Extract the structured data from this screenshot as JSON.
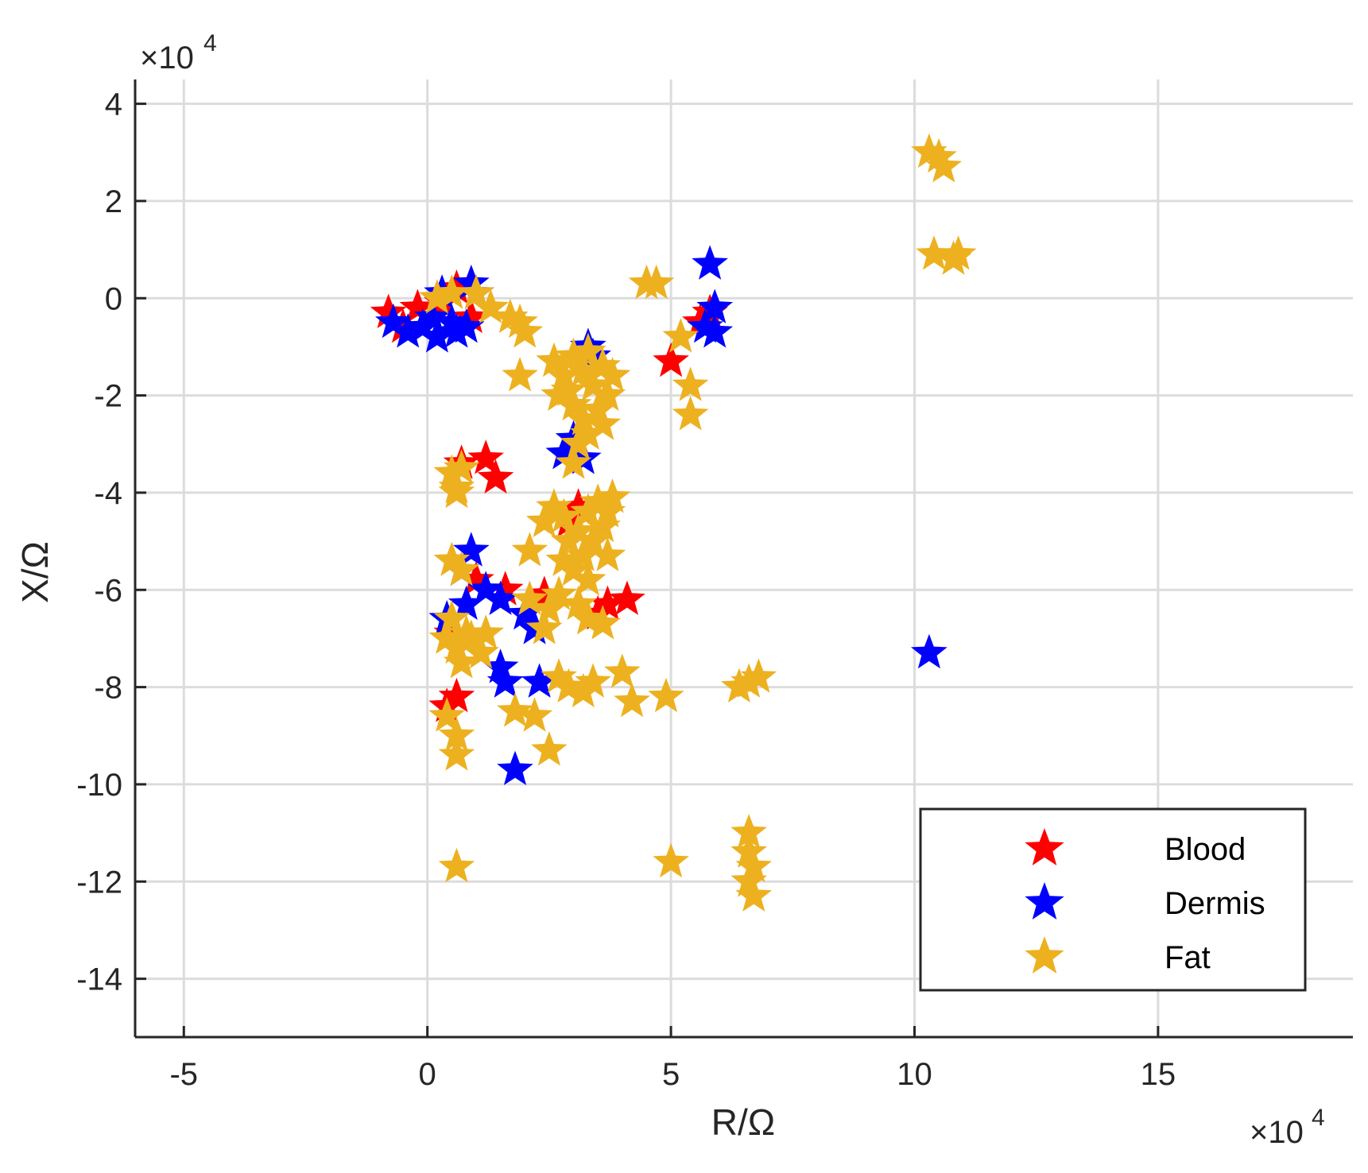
{
  "chart_data": {
    "type": "scatter",
    "title": "",
    "xlabel": "R/Ω",
    "ylabel": "X/Ω",
    "x_exponent_label": "×10",
    "x_exponent_power": "4",
    "y_exponent_label": "×10",
    "y_exponent_power": "4",
    "xlim": [
      -6,
      19
    ],
    "ylim": [
      -15.2,
      4.5
    ],
    "xticks": [
      -5,
      0,
      5,
      10,
      15
    ],
    "xtick_labels": [
      "-5",
      "0",
      "5",
      "10",
      "15"
    ],
    "yticks": [
      4,
      2,
      0,
      -2,
      -4,
      -6,
      -8,
      -10,
      -12,
      -14
    ],
    "ytick_labels": [
      "4",
      "2",
      "0",
      "-2",
      "-4",
      "-6",
      "-8",
      "-10",
      "-12",
      "-14"
    ],
    "grid": true,
    "legend_position": "bottom-right",
    "marker": "star",
    "series": [
      {
        "name": "Blood",
        "color": "#ff0000",
        "points": [
          [
            -0.8,
            -0.3
          ],
          [
            -0.5,
            -0.6
          ],
          [
            -0.2,
            -0.2
          ],
          [
            0.3,
            -0.1
          ],
          [
            0.6,
            0.2
          ],
          [
            0.9,
            -0.4
          ],
          [
            5.0,
            -1.3
          ],
          [
            5.6,
            -0.5
          ],
          [
            5.8,
            -0.3
          ],
          [
            0.7,
            -3.4
          ],
          [
            1.2,
            -3.3
          ],
          [
            1.4,
            -3.7
          ],
          [
            3.1,
            -4.3
          ],
          [
            2.9,
            -4.6
          ],
          [
            0.5,
            -6.9
          ],
          [
            1.0,
            -5.8
          ],
          [
            1.6,
            -6.0
          ],
          [
            2.4,
            -6.1
          ],
          [
            3.7,
            -6.3
          ],
          [
            4.1,
            -6.2
          ],
          [
            3.5,
            -6.5
          ],
          [
            0.4,
            -8.4
          ],
          [
            0.6,
            -8.2
          ]
        ]
      },
      {
        "name": "Dermis",
        "color": "#0000ff",
        "points": [
          [
            -0.7,
            -0.5
          ],
          [
            -0.4,
            -0.7
          ],
          [
            -0.1,
            -0.6
          ],
          [
            0.2,
            -0.8
          ],
          [
            0.5,
            -0.5
          ],
          [
            0.8,
            -0.6
          ],
          [
            0.3,
            0.1
          ],
          [
            0.9,
            0.3
          ],
          [
            1.0,
            0.1
          ],
          [
            0.6,
            -0.7
          ],
          [
            0.1,
            -0.4
          ],
          [
            5.8,
            0.7
          ],
          [
            5.9,
            -0.2
          ],
          [
            5.7,
            -0.6
          ],
          [
            5.9,
            -0.7
          ],
          [
            3.3,
            -1.0
          ],
          [
            3.4,
            -1.2
          ],
          [
            3.0,
            -2.9
          ],
          [
            2.8,
            -3.2
          ],
          [
            3.2,
            -3.3
          ],
          [
            0.9,
            -5.2
          ],
          [
            0.7,
            -5.6
          ],
          [
            1.2,
            -6.0
          ],
          [
            1.5,
            -6.2
          ],
          [
            2.0,
            -6.5
          ],
          [
            2.2,
            -6.8
          ],
          [
            0.4,
            -6.6
          ],
          [
            0.8,
            -6.3
          ],
          [
            1.5,
            -7.6
          ],
          [
            1.6,
            -7.9
          ],
          [
            2.3,
            -7.9
          ],
          [
            1.8,
            -9.7
          ],
          [
            10.3,
            -7.3
          ]
        ]
      },
      {
        "name": "Fat",
        "color": "#edb120",
        "points": [
          [
            10.3,
            3.0
          ],
          [
            10.5,
            2.9
          ],
          [
            10.6,
            2.7
          ],
          [
            10.4,
            0.9
          ],
          [
            10.8,
            0.8
          ],
          [
            10.9,
            0.9
          ],
          [
            4.5,
            0.3
          ],
          [
            4.7,
            0.3
          ],
          [
            0.2,
            0.0
          ],
          [
            0.5,
            0.1
          ],
          [
            1.0,
            0.1
          ],
          [
            1.3,
            -0.2
          ],
          [
            1.7,
            -0.4
          ],
          [
            1.9,
            -0.5
          ],
          [
            2.0,
            -0.7
          ],
          [
            5.2,
            -0.8
          ],
          [
            5.4,
            -1.8
          ],
          [
            5.4,
            -2.4
          ],
          [
            1.9,
            -1.6
          ],
          [
            2.6,
            -1.3
          ],
          [
            2.8,
            -1.6
          ],
          [
            2.7,
            -2.0
          ],
          [
            3.0,
            -1.2
          ],
          [
            3.2,
            -1.5
          ],
          [
            3.4,
            -1.8
          ],
          [
            3.6,
            -1.4
          ],
          [
            3.8,
            -1.6
          ],
          [
            3.0,
            -2.2
          ],
          [
            3.2,
            -2.5
          ],
          [
            3.5,
            -2.3
          ],
          [
            3.7,
            -2.0
          ],
          [
            3.3,
            -2.8
          ],
          [
            3.1,
            -3.0
          ],
          [
            3.0,
            -3.4
          ],
          [
            3.3,
            -1.1
          ],
          [
            2.9,
            -1.9
          ],
          [
            3.6,
            -2.6
          ],
          [
            0.5,
            -3.6
          ],
          [
            0.6,
            -3.9
          ],
          [
            0.7,
            -3.5
          ],
          [
            0.6,
            -4.0
          ],
          [
            2.6,
            -4.3
          ],
          [
            2.8,
            -4.5
          ],
          [
            3.1,
            -4.8
          ],
          [
            3.3,
            -4.4
          ],
          [
            3.5,
            -4.2
          ],
          [
            3.7,
            -4.4
          ],
          [
            3.8,
            -4.1
          ],
          [
            2.9,
            -5.0
          ],
          [
            3.2,
            -5.3
          ],
          [
            3.4,
            -5.0
          ],
          [
            3.7,
            -5.3
          ],
          [
            2.8,
            -5.4
          ],
          [
            3.0,
            -5.6
          ],
          [
            3.3,
            -5.8
          ],
          [
            2.4,
            -4.6
          ],
          [
            2.1,
            -5.2
          ],
          [
            3.6,
            -4.7
          ],
          [
            0.5,
            -5.4
          ],
          [
            0.7,
            -5.6
          ],
          [
            0.5,
            -6.6
          ],
          [
            0.8,
            -6.9
          ],
          [
            0.6,
            -7.2
          ],
          [
            0.9,
            -7.0
          ],
          [
            1.1,
            -7.3
          ],
          [
            0.7,
            -7.5
          ],
          [
            0.4,
            -7.0
          ],
          [
            1.2,
            -6.9
          ],
          [
            2.1,
            -6.2
          ],
          [
            2.5,
            -6.4
          ],
          [
            2.4,
            -6.8
          ],
          [
            3.1,
            -6.3
          ],
          [
            3.3,
            -6.6
          ],
          [
            3.6,
            -6.7
          ],
          [
            2.7,
            -6.1
          ],
          [
            2.7,
            -7.8
          ],
          [
            2.9,
            -8.0
          ],
          [
            3.2,
            -8.1
          ],
          [
            3.4,
            -7.9
          ],
          [
            4.0,
            -7.7
          ],
          [
            4.2,
            -8.3
          ],
          [
            4.9,
            -8.2
          ],
          [
            0.4,
            -8.6
          ],
          [
            0.6,
            -9.0
          ],
          [
            0.6,
            -9.4
          ],
          [
            1.8,
            -8.5
          ],
          [
            2.2,
            -8.6
          ],
          [
            2.5,
            -9.3
          ],
          [
            6.4,
            -8.0
          ],
          [
            6.6,
            -7.9
          ],
          [
            6.8,
            -7.8
          ],
          [
            0.6,
            -11.7
          ],
          [
            5.0,
            -11.6
          ],
          [
            6.6,
            -11.0
          ],
          [
            6.6,
            -11.4
          ],
          [
            6.7,
            -11.7
          ],
          [
            6.6,
            -12.0
          ],
          [
            6.7,
            -12.3
          ]
        ]
      }
    ]
  }
}
